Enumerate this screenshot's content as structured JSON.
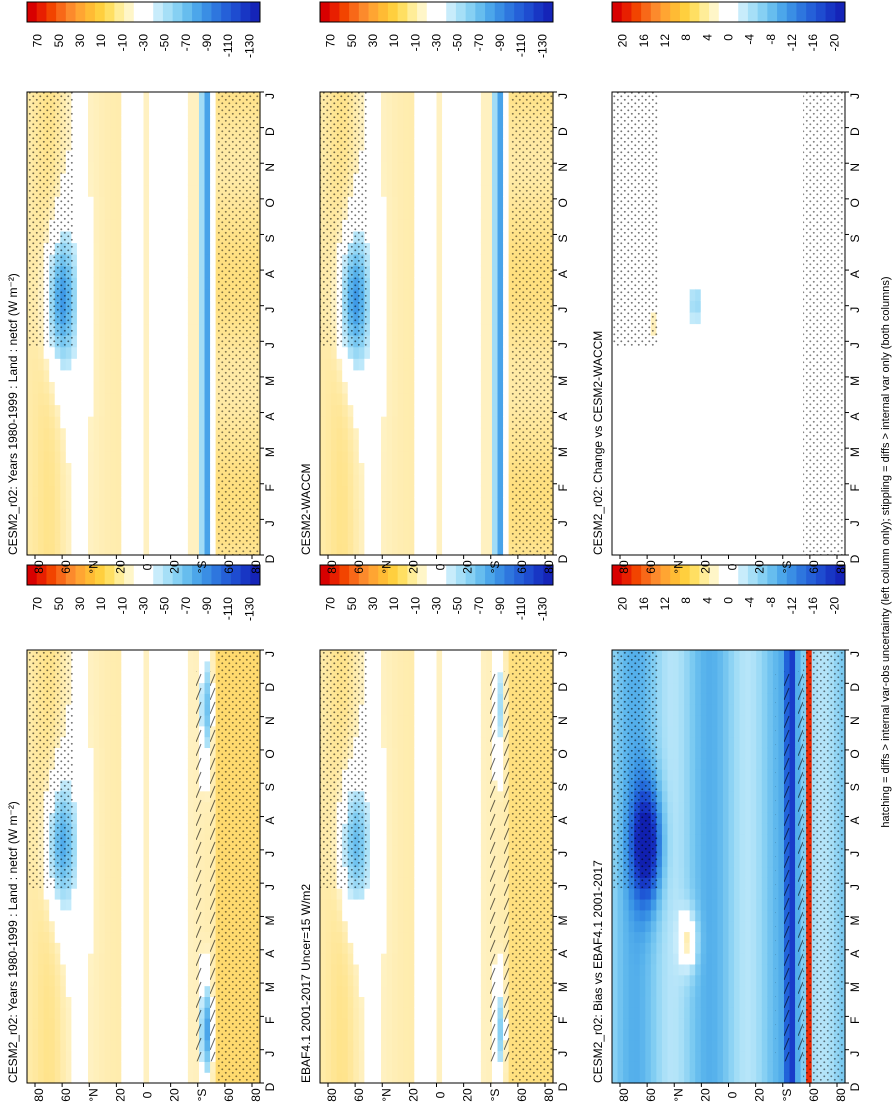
{
  "figure": {
    "footer_note": "hatching = diffs > internal var-obs uncertainty (left column only); stippling = diffs > internal var only (both columns)"
  },
  "colors": {
    "zero": "#ffffff",
    "positive": [
      "#fff2c4",
      "#ffe38a",
      "#ffd45a",
      "#ffc23a",
      "#ffad2a",
      "#ff9420",
      "#ff7818",
      "#ff5a10",
      "#f03008",
      "#d80000"
    ],
    "negative": [
      "#c8ecfb",
      "#a0dcf6",
      "#7ac9f1",
      "#58b3ec",
      "#3c97e6",
      "#2c7ce0",
      "#2060d8",
      "#1a46d0",
      "#1530c0",
      "#1020b0"
    ],
    "frame": "#000000"
  },
  "colorbars": {
    "main": {
      "labels": [
        "70",
        "50",
        "30",
        "10",
        "-10",
        "-30",
        "-50",
        "-70",
        "-90",
        "-110",
        "-130"
      ],
      "colors": [
        "#d80000",
        "#e81f00",
        "#f24400",
        "#f86818",
        "#fc8a2c",
        "#ffa532",
        "#ffbb34",
        "#ffcf3e",
        "#ffdf62",
        "#ffed98",
        "#fff6c8",
        "#ffffff",
        "#ffffff",
        "#c8ecfb",
        "#a6dff7",
        "#86d0f3",
        "#67bdee",
        "#4ca6ea",
        "#3a8ee4",
        "#2e76de",
        "#2560d8",
        "#1e4cd0",
        "#1836c4",
        "#1524b8"
      ]
    },
    "diff": {
      "labels": [
        "20",
        "16",
        "12",
        "8",
        "4",
        "0",
        "-4",
        "-8",
        "-12",
        "-16",
        "-20"
      ],
      "colors": [
        "#d80000",
        "#e81f00",
        "#f24400",
        "#f86818",
        "#fc8a2c",
        "#ffa532",
        "#ffbb34",
        "#ffcf3e",
        "#ffdf62",
        "#ffed98",
        "#fff6c8",
        "#ffffff",
        "#ffffff",
        "#c8ecfb",
        "#a6dff7",
        "#86d0f3",
        "#67bdee",
        "#4ca6ea",
        "#3a8ee4",
        "#2e76de",
        "#2560d8",
        "#1e4cd0",
        "#1836c4",
        "#1524b8"
      ]
    }
  },
  "chart_data": [
    {
      "type": "heatmap",
      "panel": "left-top",
      "title": "CESM2_r02: Years 1980-1999 : Land : netcf (W m⁻²)",
      "months": [
        "D",
        "J",
        "F",
        "M",
        "A",
        "M",
        "J",
        "J",
        "A",
        "S",
        "O",
        "N",
        "D",
        "J"
      ],
      "latitude_ticks": [
        "80",
        "60",
        "°N",
        "20",
        "0",
        "20",
        "°S",
        "60",
        "80"
      ],
      "colorbar": "main",
      "overlay": "stippling and hatching",
      "features": [
        {
          "location": "55-70N, Jun-Aug",
          "value": -60
        },
        {
          "location": "45-50S, Jan-Feb",
          "value": -90
        },
        {
          "location": "45-50S, Oct-Dec",
          "value": -70
        },
        {
          "location": "70-85N, winter",
          "value": 35
        }
      ]
    },
    {
      "type": "heatmap",
      "panel": "right-top",
      "title": "CESM2_r02: Years 1980-1999 : Land : netcf (W m⁻²)",
      "months": [
        "D",
        "J",
        "F",
        "M",
        "A",
        "M",
        "J",
        "J",
        "A",
        "S",
        "O",
        "N",
        "D",
        "J"
      ],
      "latitude_ticks": [
        "80",
        "60",
        "°N",
        "20",
        "0",
        "20",
        "°S",
        "60",
        "80"
      ],
      "colorbar": "main",
      "overlay": "stippling",
      "features": [
        {
          "location": "55-70N, Jun-Aug",
          "value": -70
        },
        {
          "location": "45-50S, year-round",
          "value": -90
        },
        {
          "location": "60-80S, year-round",
          "value": 25
        }
      ]
    },
    {
      "type": "heatmap",
      "panel": "left-middle",
      "title": "EBAF4.1 2001-2017 Uncer=15 W/m2",
      "months": [
        "D",
        "J",
        "F",
        "M",
        "A",
        "M",
        "J",
        "J",
        "A",
        "S",
        "O",
        "N",
        "D",
        "J"
      ],
      "latitude_ticks": [
        "80",
        "60",
        "°N",
        "20",
        "0",
        "20",
        "°S",
        "60",
        "80"
      ],
      "colorbar": "main",
      "overlay": "stippling and hatching",
      "features": [
        {
          "location": "55-70N, Jun-Aug",
          "value": -50
        },
        {
          "location": "45-50S, Jan-Feb",
          "value": -60
        },
        {
          "location": "60-80S, year-round",
          "value": 30
        }
      ]
    },
    {
      "type": "heatmap",
      "panel": "right-middle",
      "title": "CESM2-WACCM",
      "months": [
        "D",
        "J",
        "F",
        "M",
        "A",
        "M",
        "J",
        "J",
        "A",
        "S",
        "O",
        "N",
        "D",
        "J"
      ],
      "latitude_ticks": [
        "80",
        "60",
        "°N",
        "20",
        "0",
        "20",
        "°S",
        "60",
        "80"
      ],
      "colorbar": "main",
      "overlay": "stippling",
      "features": [
        {
          "location": "55-70N, Jun-Aug",
          "value": -70
        },
        {
          "location": "45-50S, year-round",
          "value": -90
        },
        {
          "location": "60-80S, year-round",
          "value": 25
        }
      ]
    },
    {
      "type": "heatmap",
      "panel": "left-bottom",
      "title": "CESM2_r02: Bias vs EBAF4.1 2001-2017",
      "months": [
        "D",
        "J",
        "F",
        "M",
        "A",
        "M",
        "J",
        "J",
        "A",
        "S",
        "O",
        "N",
        "D",
        "J"
      ],
      "latitude_ticks": [
        "80",
        "60",
        "°N",
        "20",
        "0",
        "20",
        "°S",
        "60",
        "80"
      ],
      "colorbar": "diff",
      "overlay": "stippling and hatching",
      "features": [
        {
          "location": "55-70N, Jun-Aug",
          "value": -18
        },
        {
          "location": "30-40N, Apr",
          "value": 8
        },
        {
          "location": "45-50S, year-round",
          "value": -16
        },
        {
          "location": "near 60S",
          "value": 20
        }
      ]
    },
    {
      "type": "heatmap",
      "panel": "right-bottom",
      "title": "CESM2_r02: Change vs CESM2-WACCM",
      "months": [
        "D",
        "J",
        "F",
        "M",
        "A",
        "M",
        "J",
        "J",
        "A",
        "S",
        "O",
        "N",
        "D",
        "J"
      ],
      "latitude_ticks": [
        "80",
        "60",
        "°N",
        "20",
        "0",
        "20",
        "°S",
        "60",
        "80"
      ],
      "colorbar": "diff",
      "overlay": "stippling",
      "features": [
        {
          "location": "50-60N, Jun-Jul",
          "value": 3
        },
        {
          "location": "mostly near zero",
          "value": 0
        }
      ]
    }
  ]
}
